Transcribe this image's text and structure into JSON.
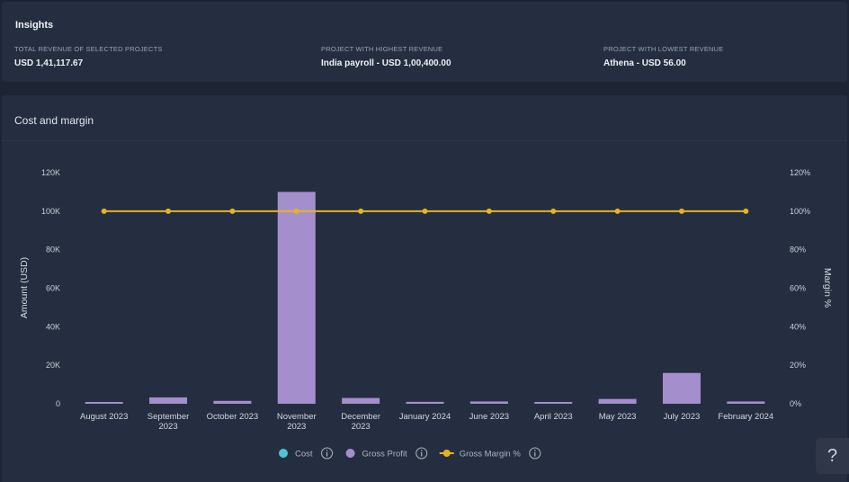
{
  "insights": {
    "title": "Insights",
    "metrics": [
      {
        "label": "Total revenue of selected projects",
        "value": "USD 1,41,117.67"
      },
      {
        "label": "Project with highest revenue",
        "value": "India payroll - USD 1,00,400.00"
      },
      {
        "label": "Project with lowest revenue",
        "value": "Athena - USD 56.00"
      }
    ]
  },
  "chart_panel": {
    "title": "Cost and margin"
  },
  "help_button": {
    "label": "?",
    "icon": "question-icon"
  },
  "colors": {
    "cost": "#4fc3d6",
    "gross_profit": "#a48fcc",
    "gross_margin": "#e8b321"
  },
  "chart_data": {
    "type": "bar",
    "title": "Cost and margin",
    "xlabel": "",
    "ylabel": "Amount (USD)",
    "y2label": "Margin %",
    "ylim": [
      0,
      120000
    ],
    "y2lim": [
      0,
      120
    ],
    "yticks": [
      "0",
      "20K",
      "40K",
      "60K",
      "80K",
      "100K",
      "120K"
    ],
    "y2ticks": [
      "0%",
      "20%",
      "40%",
      "60%",
      "80%",
      "100%",
      "120%"
    ],
    "grid": false,
    "legend_position": "bottom-center",
    "categories": [
      [
        "August 2023"
      ],
      [
        "September",
        "2023"
      ],
      [
        "October 2023"
      ],
      [
        "November",
        "2023"
      ],
      [
        "December",
        "2023"
      ],
      [
        "January 2024"
      ],
      [
        "June 2023"
      ],
      [
        "April 2023"
      ],
      [
        "May 2023"
      ],
      [
        "July 2023"
      ],
      [
        "February 2024"
      ]
    ],
    "series": [
      {
        "name": "Cost",
        "type": "bar",
        "values": [
          0,
          0,
          0,
          0,
          0,
          0,
          0,
          0,
          0,
          0,
          0
        ]
      },
      {
        "name": "Gross Profit",
        "type": "bar",
        "values": [
          500,
          3300,
          1500,
          110000,
          3000,
          1000,
          1200,
          500,
          2500,
          16000,
          1200
        ]
      },
      {
        "name": "Gross Margin %",
        "type": "line",
        "axis": "right",
        "values": [
          100,
          100,
          100,
          100,
          100,
          100,
          100,
          100,
          100,
          100,
          100
        ]
      }
    ],
    "legend": [
      {
        "name": "Cost",
        "marker": "circle",
        "info_icon": true
      },
      {
        "name": "Gross Profit",
        "marker": "circle",
        "info_icon": true
      },
      {
        "name": "Gross Margin %",
        "marker": "line-circle",
        "info_icon": true
      }
    ]
  }
}
